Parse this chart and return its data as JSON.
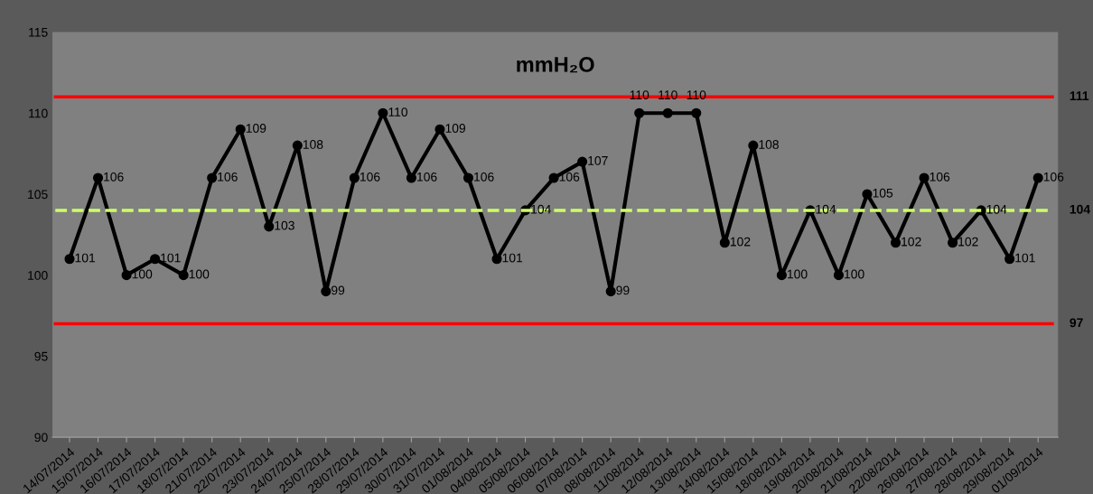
{
  "chart_data": {
    "type": "line",
    "title": "mmH₂O",
    "categories": [
      "14/07/2014",
      "15/07/2014",
      "16/07/2014",
      "17/07/2014",
      "18/07/2014",
      "21/07/2014",
      "22/07/2014",
      "23/07/2014",
      "24/07/2014",
      "25/07/2014",
      "28/07/2014",
      "29/07/2014",
      "30/07/2014",
      "31/07/2014",
      "01/08/2014",
      "04/08/2014",
      "05/08/2014",
      "06/08/2014",
      "07/08/2014",
      "08/08/2014",
      "11/08/2014",
      "12/08/2014",
      "13/08/2014",
      "14/08/2014",
      "15/08/2014",
      "18/08/2014",
      "19/08/2014",
      "20/08/2014",
      "21/08/2014",
      "22/08/2014",
      "26/08/2014",
      "27/08/2014",
      "28/08/2014",
      "29/08/2014",
      "01/09/2014"
    ],
    "series": [
      {
        "color": "#000000",
        "values": [
          101,
          106,
          100,
          101,
          100,
          106,
          109,
          103,
          108,
          99,
          106,
          110,
          106,
          109,
          106,
          101,
          104,
          106,
          107,
          99,
          110,
          110,
          110,
          102,
          108,
          100,
          104,
          100,
          105,
          102,
          106,
          102,
          104,
          101,
          106
        ]
      }
    ],
    "data_labels": true,
    "marker": "circle",
    "line_style": "solid",
    "grid": false,
    "legend": false,
    "ylim": [
      90,
      115
    ],
    "yticks": [
      90,
      95,
      100,
      105,
      110,
      115
    ],
    "ref_lines": [
      {
        "axis": "y",
        "value": 111,
        "label": "111",
        "color": "#ff0000",
        "line_style": "solid"
      },
      {
        "axis": "y",
        "value": 104,
        "label": "104",
        "color": "#ccff66",
        "line_style": "dashed"
      },
      {
        "axis": "y",
        "value": 97,
        "label": "97",
        "color": "#ff0000",
        "line_style": "solid"
      }
    ]
  }
}
